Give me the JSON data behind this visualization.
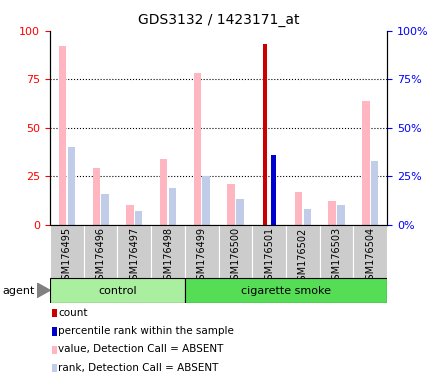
{
  "title": "GDS3132 / 1423171_at",
  "samples": [
    "GSM176495",
    "GSM176496",
    "GSM176497",
    "GSM176498",
    "GSM176499",
    "GSM176500",
    "GSM176501",
    "GSM176502",
    "GSM176503",
    "GSM176504"
  ],
  "n_control": 4,
  "n_smoke": 6,
  "value_absent": [
    92,
    29,
    10,
    34,
    78,
    21,
    0,
    17,
    12,
    64
  ],
  "rank_absent": [
    40,
    16,
    7,
    19,
    25,
    13,
    0,
    8,
    10,
    33
  ],
  "count_val": [
    0,
    0,
    0,
    0,
    0,
    0,
    93,
    0,
    0,
    0
  ],
  "pct_rank": [
    0,
    0,
    0,
    0,
    0,
    0,
    36,
    0,
    0,
    0
  ],
  "ylim": [
    0,
    100
  ],
  "yticks": [
    0,
    25,
    50,
    75,
    100
  ],
  "color_value_absent": "#FFB6C1",
  "color_rank_absent": "#C0CCE8",
  "color_count": "#CC0000",
  "color_pct_rank": "#0000CC",
  "color_control": "#AAEEA0",
  "color_smoke": "#55DD55",
  "color_tickbg": "#CCCCCC",
  "legend_items": [
    {
      "color": "#CC0000",
      "label": "count"
    },
    {
      "color": "#0000CC",
      "label": "percentile rank within the sample"
    },
    {
      "color": "#FFB6C1",
      "label": "value, Detection Call = ABSENT"
    },
    {
      "color": "#C0CCE8",
      "label": "rank, Detection Call = ABSENT"
    }
  ]
}
